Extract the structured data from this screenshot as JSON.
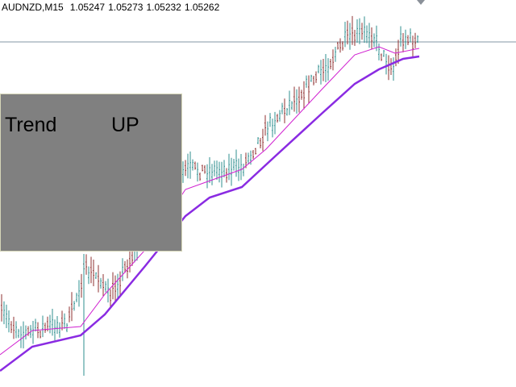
{
  "header": {
    "symbol": "AUDNZD,M15",
    "open": 1.05247,
    "high": 1.05273,
    "low": 1.05232,
    "close": 1.05262
  },
  "panel": {
    "label": "Trend",
    "direction": "UP"
  }
}
